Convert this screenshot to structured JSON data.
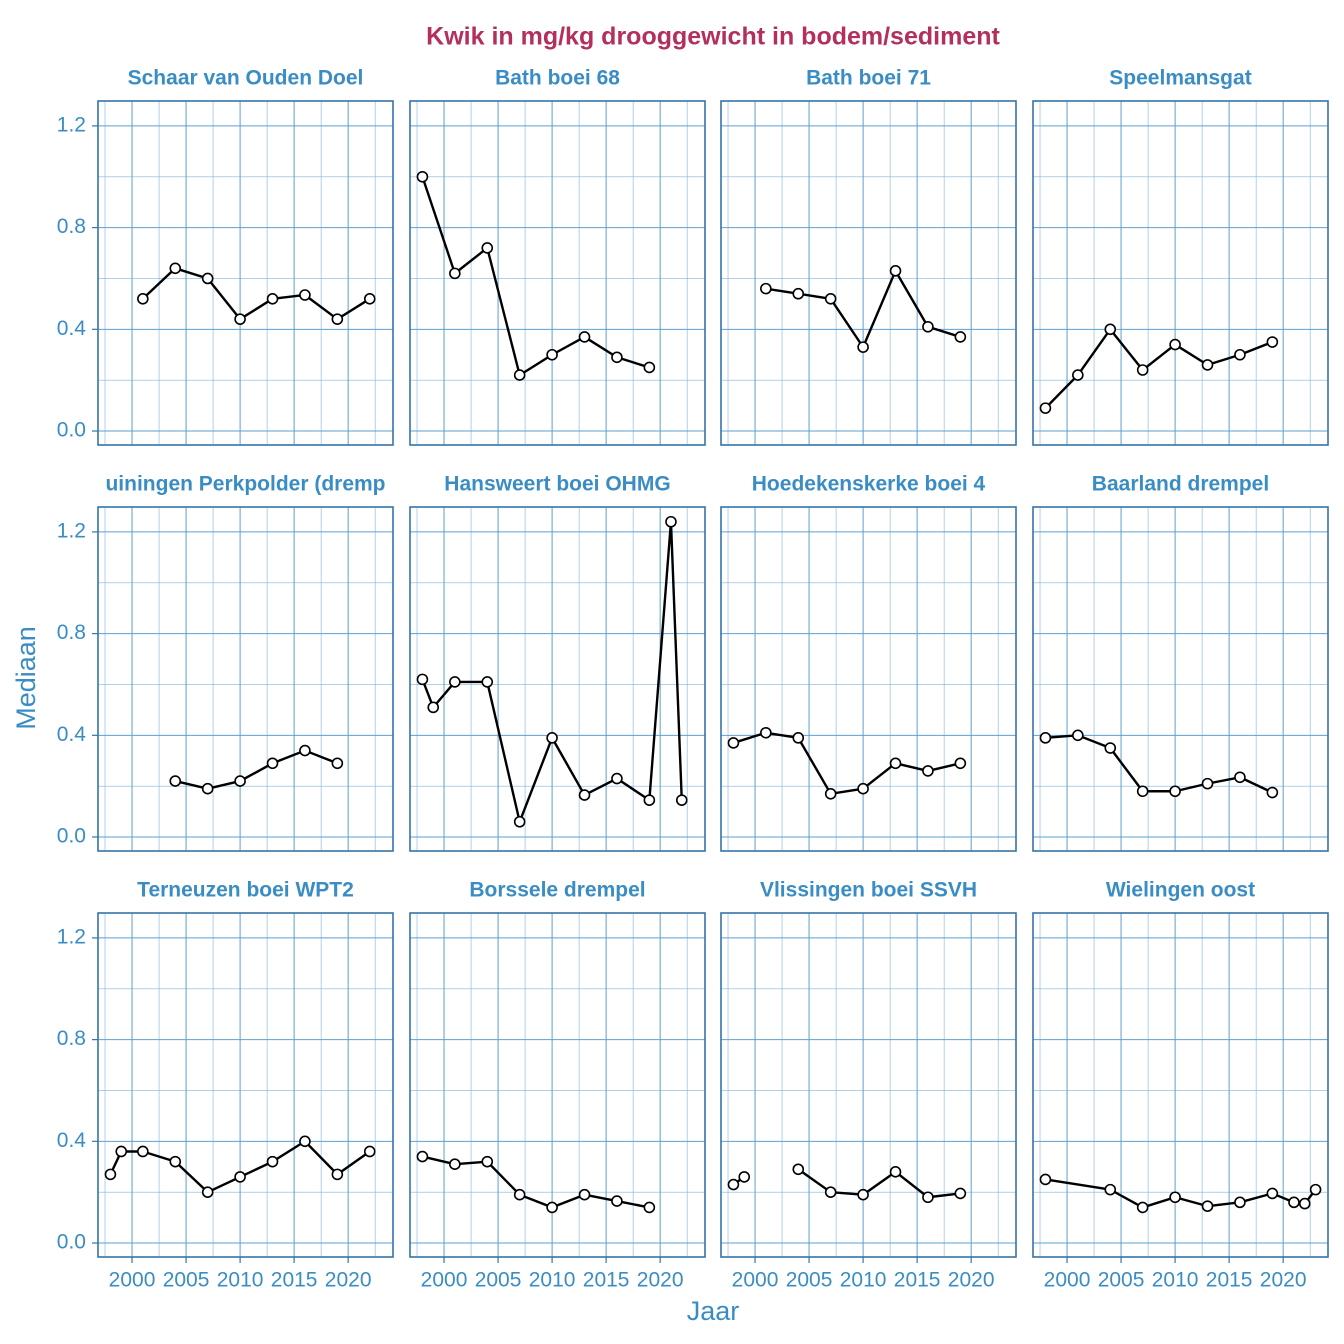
{
  "title": "Kwik in mg/kg drooggewicht in bodem/sediment",
  "x_label": "Jaar",
  "y_label": "Mediaan",
  "chart_data": [
    {
      "type": "line",
      "title": "Schaar van Ouden Doel",
      "x": [
        2001,
        2004,
        2007,
        2010,
        2013,
        2016,
        2019,
        2022
      ],
      "values": [
        0.52,
        0.64,
        0.6,
        0.44,
        0.52,
        0.535,
        0.44,
        0.52
      ],
      "color": "#000000",
      "marker_fill": "#ffffff",
      "xlim": [
        1996.85,
        2024.15
      ],
      "ylim": [
        -0.055,
        1.298
      ],
      "xticks": [
        2000,
        2005,
        2010,
        2015,
        2020
      ],
      "yticks": [
        {
          "value": 0,
          "label": "0.0"
        },
        0.4,
        0.8,
        1.2
      ],
      "grid": true
    },
    {
      "type": "line",
      "title": "Bath boei 68",
      "x": [
        1998,
        2001,
        2004,
        2007,
        2010,
        2013,
        2016,
        2019
      ],
      "values": [
        1.0,
        0.62,
        0.72,
        0.22,
        0.3,
        0.37,
        0.29,
        0.25
      ],
      "color": "#000000",
      "marker_fill": "#ffffff",
      "xlim": [
        1996.85,
        2024.15
      ],
      "ylim": [
        -0.055,
        1.298
      ],
      "xticks": [
        2000,
        2005,
        2010,
        2015,
        2020
      ],
      "yticks": [
        {
          "value": 0,
          "label": "0.0"
        },
        0.4,
        0.8,
        1.2
      ],
      "grid": true
    },
    {
      "type": "line",
      "title": "Bath boei 71",
      "x": [
        2001,
        2004,
        2007,
        2010,
        2013,
        2016,
        2019
      ],
      "values": [
        0.56,
        0.54,
        0.52,
        0.33,
        0.63,
        0.41,
        0.37
      ],
      "color": "#000000",
      "marker_fill": "#ffffff",
      "xlim": [
        1996.85,
        2024.15
      ],
      "ylim": [
        -0.055,
        1.298
      ],
      "xticks": [
        2000,
        2005,
        2010,
        2015,
        2020
      ],
      "yticks": [
        {
          "value": 0,
          "label": "0.0"
        },
        0.4,
        0.8,
        1.2
      ],
      "grid": true
    },
    {
      "type": "line",
      "title": "Speelmansgat",
      "x": [
        1998,
        2001,
        2004,
        2007,
        2010,
        2013,
        2016,
        2019
      ],
      "values": [
        0.09,
        0.22,
        0.4,
        0.24,
        0.34,
        0.26,
        0.3,
        0.35
      ],
      "color": "#000000",
      "marker_fill": "#ffffff",
      "xlim": [
        1996.85,
        2024.15
      ],
      "ylim": [
        -0.055,
        1.298
      ],
      "xticks": [
        2000,
        2005,
        2010,
        2015,
        2020
      ],
      "yticks": [
        {
          "value": 0,
          "label": "0.0"
        },
        0.4,
        0.8,
        1.2
      ],
      "grid": true
    },
    {
      "type": "line",
      "title": "uiningen Perkpolder (dremp",
      "x": [
        2004,
        2007,
        2010,
        2013,
        2016,
        2019
      ],
      "values": [
        0.22,
        0.19,
        0.22,
        0.29,
        0.34,
        0.29
      ],
      "color": "#000000",
      "marker_fill": "#ffffff",
      "xlim": [
        1996.85,
        2024.15
      ],
      "ylim": [
        -0.055,
        1.298
      ],
      "xticks": [
        2000,
        2005,
        2010,
        2015,
        2020
      ],
      "yticks": [
        {
          "value": 0,
          "label": "0.0"
        },
        0.4,
        0.8,
        1.2
      ],
      "grid": true
    },
    {
      "type": "line",
      "title": "Hansweert boei OHMG",
      "x": [
        1998,
        1999,
        2001,
        2004,
        2007,
        2010,
        2013,
        2016,
        2019,
        2021,
        2022
      ],
      "values": [
        0.62,
        0.51,
        0.61,
        0.61,
        0.06,
        0.39,
        0.165,
        0.23,
        0.145,
        1.24,
        0.145
      ],
      "color": "#000000",
      "marker_fill": "#ffffff",
      "xlim": [
        1996.85,
        2024.15
      ],
      "ylim": [
        -0.055,
        1.298
      ],
      "xticks": [
        2000,
        2005,
        2010,
        2015,
        2020
      ],
      "yticks": [
        {
          "value": 0,
          "label": "0.0"
        },
        0.4,
        0.8,
        1.2
      ],
      "grid": true
    },
    {
      "type": "line",
      "title": "Hoedekenskerke boei 4",
      "x": [
        1998,
        2001,
        2004,
        2007,
        2010,
        2013,
        2016,
        2019
      ],
      "values": [
        0.37,
        0.41,
        0.39,
        0.17,
        0.19,
        0.29,
        0.26,
        0.29
      ],
      "color": "#000000",
      "marker_fill": "#ffffff",
      "xlim": [
        1996.85,
        2024.15
      ],
      "ylim": [
        -0.055,
        1.298
      ],
      "xticks": [
        2000,
        2005,
        2010,
        2015,
        2020
      ],
      "yticks": [
        {
          "value": 0,
          "label": "0.0"
        },
        0.4,
        0.8,
        1.2
      ],
      "grid": true
    },
    {
      "type": "line",
      "title": "Baarland drempel",
      "x": [
        1998,
        2001,
        2004,
        2007,
        2010,
        2013,
        2016,
        2019
      ],
      "values": [
        0.39,
        0.4,
        0.35,
        0.18,
        0.18,
        0.21,
        0.235,
        0.175
      ],
      "color": "#000000",
      "marker_fill": "#ffffff",
      "xlim": [
        1996.85,
        2024.15
      ],
      "ylim": [
        -0.055,
        1.298
      ],
      "xticks": [
        2000,
        2005,
        2010,
        2015,
        2020
      ],
      "yticks": [
        {
          "value": 0,
          "label": "0.0"
        },
        0.4,
        0.8,
        1.2
      ],
      "grid": true
    },
    {
      "type": "line",
      "title": "Terneuzen boei WPT2",
      "x": [
        1998,
        1999,
        2001,
        2004,
        2007,
        2010,
        2013,
        2016,
        2019,
        2022
      ],
      "values": [
        0.27,
        0.36,
        0.36,
        0.32,
        0.2,
        0.26,
        0.32,
        0.4,
        0.27,
        0.36
      ],
      "color": "#000000",
      "marker_fill": "#ffffff",
      "xlim": [
        1996.85,
        2024.15
      ],
      "ylim": [
        -0.055,
        1.298
      ],
      "xticks": [
        2000,
        2005,
        2010,
        2015,
        2020
      ],
      "yticks": [
        {
          "value": 0,
          "label": "0.0"
        },
        0.4,
        0.8,
        1.2
      ],
      "grid": true
    },
    {
      "type": "line",
      "title": "Borssele drempel",
      "x": [
        1998,
        2001,
        2004,
        2007,
        2010,
        2013,
        2016,
        2019
      ],
      "values": [
        0.34,
        0.31,
        0.32,
        0.19,
        0.14,
        0.19,
        0.165,
        0.14
      ],
      "color": "#000000",
      "marker_fill": "#ffffff",
      "xlim": [
        1996.85,
        2024.15
      ],
      "ylim": [
        -0.055,
        1.298
      ],
      "xticks": [
        2000,
        2005,
        2010,
        2015,
        2020
      ],
      "yticks": [
        {
          "value": 0,
          "label": "0.0"
        },
        0.4,
        0.8,
        1.2
      ],
      "grid": true
    },
    {
      "type": "line",
      "title": "Vlissingen boei SSVH",
      "x": [
        1998,
        1999,
        2001,
        2004,
        2007,
        2010,
        2013,
        2016,
        2019
      ],
      "values": [
        0.23,
        0.26,
        null,
        0.29,
        0.2,
        0.19,
        0.28,
        0.18,
        0.195
      ],
      "color": "#000000",
      "marker_fill": "#ffffff",
      "xlim": [
        1996.85,
        2024.15
      ],
      "ylim": [
        -0.055,
        1.298
      ],
      "xticks": [
        2000,
        2005,
        2010,
        2015,
        2020
      ],
      "yticks": [
        {
          "value": 0,
          "label": "0.0"
        },
        0.4,
        0.8,
        1.2
      ],
      "grid": true
    },
    {
      "type": "line",
      "title": "Wielingen oost",
      "x": [
        1998,
        2004,
        2007,
        2010,
        2013,
        2016,
        2019,
        2021,
        2022,
        2023
      ],
      "values": [
        0.25,
        0.21,
        0.14,
        0.18,
        0.145,
        0.16,
        0.195,
        0.16,
        0.155,
        0.21
      ],
      "color": "#000000",
      "marker_fill": "#ffffff",
      "xlim": [
        1996.85,
        2024.15
      ],
      "ylim": [
        -0.055,
        1.298
      ],
      "xticks": [
        2000,
        2005,
        2010,
        2015,
        2020
      ],
      "yticks": [
        {
          "value": 0,
          "label": "0.0"
        },
        0.4,
        0.8,
        1.2
      ],
      "grid": true
    }
  ]
}
